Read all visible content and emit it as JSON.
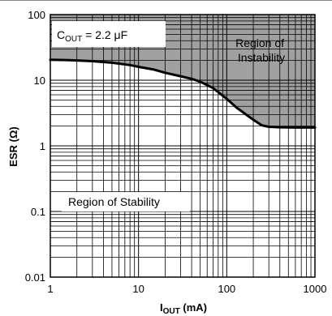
{
  "chart_data": {
    "type": "line",
    "x_scale": "log",
    "y_scale": "log",
    "xlim": [
      1,
      1000
    ],
    "ylim": [
      0.01,
      100
    ],
    "grid": true,
    "x_ticks": [
      "1",
      "10",
      "100",
      "1000"
    ],
    "y_ticks": [
      "100",
      "10",
      "1",
      "0.1",
      "0.01"
    ],
    "xlabel": {
      "main": "I",
      "sub": "OUT",
      "suffix": " (mA)"
    },
    "ylabel": "ESR (Ω)",
    "annotation": {
      "main": "C",
      "sub": "OUT",
      "suffix": " = 2.2 μF"
    },
    "regions": {
      "instability": [
        "Region of",
        "Instability"
      ],
      "stability": "Region of Stability"
    },
    "series": [
      {
        "x": [
          1,
          1.5,
          2,
          3,
          5,
          8,
          10,
          15,
          20,
          30,
          40,
          50,
          70,
          100,
          130,
          150,
          200,
          250,
          300,
          400,
          600,
          1000
        ],
        "values": [
          20.5,
          20.3,
          20,
          19.5,
          18.5,
          17,
          16,
          14.5,
          13,
          11.5,
          10.5,
          9.5,
          7.6,
          5.2,
          3.8,
          3.3,
          2.5,
          2.05,
          1.95,
          1.92,
          1.9,
          1.9
        ]
      }
    ],
    "colors": {
      "instability_fill": "#a0a0a0",
      "curve": "#000000",
      "grid": "#000000"
    }
  }
}
